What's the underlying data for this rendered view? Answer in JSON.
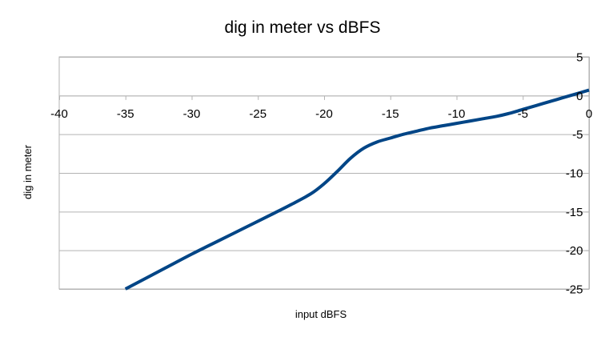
{
  "chart_data": {
    "type": "line",
    "title": "dig in meter vs dBFS",
    "xlabel": "input dBFS",
    "ylabel": "dig in meter",
    "xlim": [
      -40,
      0
    ],
    "ylim": [
      -25,
      5
    ],
    "x_ticks": [
      -40,
      -35,
      -30,
      -25,
      -20,
      -15,
      -10,
      -5,
      0
    ],
    "y_ticks": [
      5,
      0,
      -5,
      -10,
      -15,
      -20,
      -25
    ],
    "grid": "horizontal",
    "legend": "none",
    "series": [
      {
        "color": "#004586",
        "x": [
          -35,
          -32,
          -30,
          -28,
          -26,
          -24,
          -22.5,
          -21,
          -20,
          -19,
          -18,
          -17,
          -16,
          -15,
          -14,
          -13,
          -12,
          -11,
          -10,
          -9,
          -8,
          -7,
          -6,
          -5,
          -4,
          -3,
          -2,
          -1,
          0
        ],
        "y": [
          -25,
          -22.3,
          -20.5,
          -18.8,
          -17.1,
          -15.4,
          -14.1,
          -12.7,
          -11.4,
          -9.8,
          -8.1,
          -6.8,
          -6.0,
          -5.5,
          -5.0,
          -4.6,
          -4.2,
          -3.9,
          -3.6,
          -3.3,
          -3.0,
          -2.7,
          -2.3,
          -1.8,
          -1.3,
          -0.8,
          -0.3,
          0.2,
          0.7
        ]
      }
    ]
  }
}
